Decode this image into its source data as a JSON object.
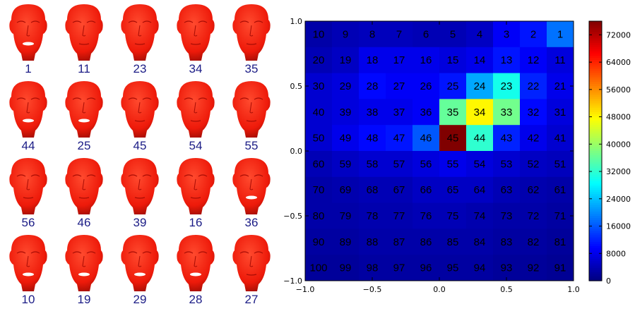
{
  "faces": {
    "labels": [
      "1",
      "11",
      "23",
      "34",
      "35",
      "44",
      "25",
      "45",
      "54",
      "55",
      "56",
      "46",
      "39",
      "16",
      "36",
      "10",
      "19",
      "29",
      "28",
      "27"
    ],
    "face_color": "#ee1a0a",
    "label_color": "#1b1c86"
  },
  "chart_data": {
    "type": "heatmap",
    "title": "",
    "xlabel": "",
    "ylabel": "",
    "xlim": [
      -1.0,
      1.0
    ],
    "ylim": [
      -1.0,
      1.0
    ],
    "x_tick_labels": [
      "−1.0",
      "−0.5",
      "0.0",
      "0.5",
      "1.0"
    ],
    "y_tick_labels": [
      "1.0",
      "0.5",
      "0.0",
      "−0.5",
      "−1.0"
    ],
    "colormap": "jet",
    "color_range": [
      0,
      76000
    ],
    "colorbar_tick_labels": [
      "72000",
      "64000",
      "56000",
      "48000",
      "40000",
      "32000",
      "24000",
      "16000",
      "8000",
      "0"
    ],
    "colorbar_ticks": [
      72000,
      64000,
      56000,
      48000,
      40000,
      32000,
      24000,
      16000,
      8000,
      0
    ],
    "grid_size": [
      10,
      10
    ],
    "cell_labels": [
      [
        "10",
        "9",
        "8",
        "7",
        "6",
        "5",
        "4",
        "3",
        "2",
        "1"
      ],
      [
        "20",
        "19",
        "18",
        "17",
        "16",
        "15",
        "14",
        "13",
        "12",
        "11"
      ],
      [
        "30",
        "29",
        "28",
        "27",
        "26",
        "25",
        "24",
        "23",
        "22",
        "21"
      ],
      [
        "40",
        "39",
        "38",
        "37",
        "36",
        "35",
        "34",
        "33",
        "32",
        "31"
      ],
      [
        "50",
        "49",
        "48",
        "47",
        "46",
        "45",
        "44",
        "43",
        "42",
        "41"
      ],
      [
        "60",
        "59",
        "58",
        "57",
        "56",
        "55",
        "54",
        "53",
        "52",
        "51"
      ],
      [
        "70",
        "69",
        "68",
        "67",
        "66",
        "65",
        "64",
        "63",
        "62",
        "61"
      ],
      [
        "80",
        "79",
        "78",
        "77",
        "76",
        "75",
        "74",
        "73",
        "72",
        "71"
      ],
      [
        "90",
        "89",
        "88",
        "87",
        "86",
        "85",
        "84",
        "83",
        "82",
        "81"
      ],
      [
        "100",
        "99",
        "98",
        "97",
        "96",
        "95",
        "94",
        "93",
        "92",
        "91"
      ]
    ],
    "values": [
      [
        3000,
        4000,
        4500,
        4500,
        4000,
        4000,
        5000,
        9000,
        11000,
        18000
      ],
      [
        4000,
        5000,
        8000,
        8000,
        8000,
        7000,
        8000,
        11000,
        9000,
        7000
      ],
      [
        6000,
        7000,
        10000,
        9000,
        9000,
        11000,
        22000,
        30000,
        12000,
        8000
      ],
      [
        6000,
        7000,
        8000,
        8000,
        9000,
        36000,
        48000,
        37000,
        10000,
        7000
      ],
      [
        6000,
        8000,
        10000,
        11000,
        16000,
        76000,
        32000,
        12000,
        8000,
        6000
      ],
      [
        4000,
        5000,
        6000,
        6000,
        7000,
        8000,
        7000,
        6000,
        5000,
        4500
      ],
      [
        3000,
        3500,
        4000,
        4000,
        5000,
        5000,
        5000,
        4000,
        3500,
        3000
      ],
      [
        3000,
        3000,
        3500,
        3500,
        4000,
        4000,
        3500,
        3000,
        3000,
        2500
      ],
      [
        2500,
        2500,
        3000,
        3000,
        3000,
        3000,
        3000,
        2500,
        2500,
        2000
      ],
      [
        2000,
        2000,
        2500,
        2500,
        2500,
        2500,
        2500,
        2000,
        2000,
        1500
      ]
    ]
  }
}
